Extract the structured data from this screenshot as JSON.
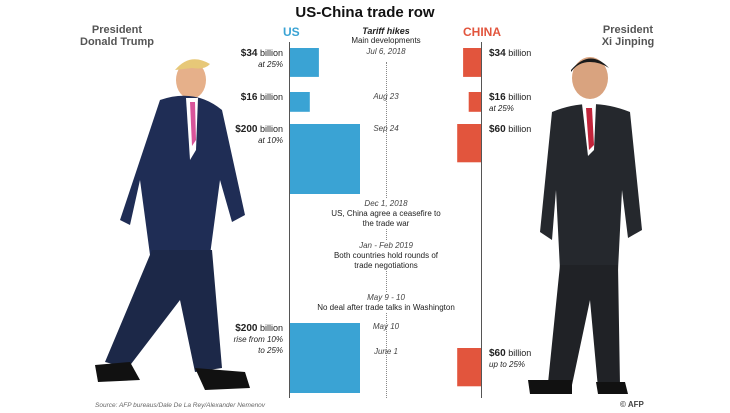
{
  "title": "US-China trade row",
  "left_leader": {
    "line1": "President",
    "line2": "Donald Trump"
  },
  "right_leader": {
    "line1": "President",
    "line2": "Xi Jinping"
  },
  "us_label": "US",
  "china_label": "CHINA",
  "header": {
    "main": "Tariff hikes",
    "sub": "Main developments"
  },
  "events": [
    {
      "date": "Jul 6, 2018",
      "text": ""
    },
    {
      "date": "Aug 23",
      "text": ""
    },
    {
      "date": "Sep 24",
      "text": ""
    },
    {
      "date": "Dec 1, 2018",
      "text": "US, China agree a ceasefire to the trade war"
    },
    {
      "date": "Jan - Feb 2019",
      "text": "Both countries hold rounds of trade negotiations"
    },
    {
      "date": "May 9 - 10",
      "text": "No deal after trade talks in Washington"
    },
    {
      "date": "May 10",
      "text": ""
    },
    {
      "date": "June 1",
      "text": ""
    }
  ],
  "chart_data": {
    "type": "bar",
    "title": "US-China trade row",
    "unit": "billion $ of goods tariffed",
    "series": [
      {
        "name": "US",
        "color": "#3aa3d4",
        "direction": "left",
        "points": [
          {
            "date": "Jul 6, 2018",
            "value": 34,
            "label": "$34",
            "unit": "billion",
            "note": "at 25%"
          },
          {
            "date": "Aug 23",
            "value": 16,
            "label": "$16",
            "unit": "billion",
            "note": ""
          },
          {
            "date": "Sep 24",
            "value": 200,
            "label": "$200",
            "unit": "billion",
            "note": "at 10%"
          },
          {
            "date": "May 10",
            "value": 200,
            "label": "$200",
            "unit": "billion",
            "note": "rise from 10% to 25%"
          }
        ]
      },
      {
        "name": "CHINA",
        "color": "#e2553d",
        "direction": "right",
        "points": [
          {
            "date": "Jul 6, 2018",
            "value": 34,
            "label": "$34",
            "unit": "billion",
            "note": ""
          },
          {
            "date": "Aug 23",
            "value": 16,
            "label": "$16",
            "unit": "billion",
            "note": "at 25%"
          },
          {
            "date": "Sep 24",
            "value": 60,
            "label": "$60",
            "unit": "billion",
            "note": ""
          },
          {
            "date": "June 1",
            "value": 60,
            "label": "$60",
            "unit": "billion",
            "note": "up to 25%"
          }
        ]
      }
    ]
  },
  "source": "Source: AFP bureaus/Dale De La Rey/Alexander Nemenov",
  "credit": "© AFP",
  "colors": {
    "us": "#3aa3d4",
    "china": "#e2553d"
  }
}
